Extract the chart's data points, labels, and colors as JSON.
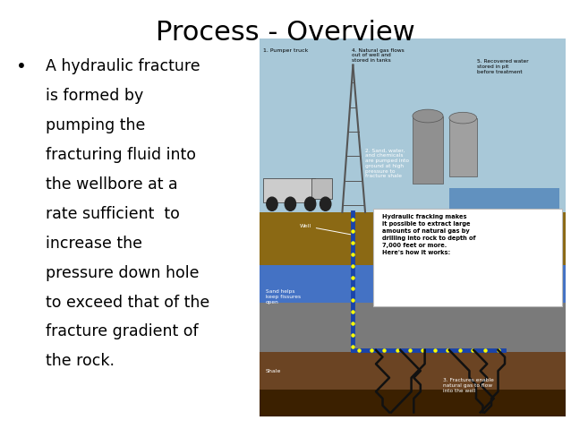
{
  "title": "Process - Overview",
  "title_fontsize": 22,
  "background_color": "#ffffff",
  "bullet_lines": [
    "A hydraulic fracture",
    "is formed by",
    "pumping the",
    "fracturing fluid into",
    "the wellbore at a",
    "rate sufficient  to",
    "increase the",
    "pressure down hole",
    "to exceed that of the",
    "fracture gradient of",
    "the rock."
  ],
  "bullet_fontsize": 12.5,
  "text_color": "#000000",
  "sky_color": "#a8c8d8",
  "ground_color": "#8B6914",
  "water_layer_color": "#4472C4",
  "gray_layer_color": "#7a7a7a",
  "dark_brown_color": "#6B4423",
  "very_dark_color": "#3B2000",
  "pipe_color": "#1a44aa",
  "dot_color": "#ffff00",
  "fracture_color": "#111111",
  "tank_color": "#888888",
  "truck_color": "#cccccc",
  "derrick_color": "#555555",
  "water_pool_color": "#5588bb",
  "infobox_text": "Hydraulic fracking makes\nit possible to extract large\namounts of natural gas by\ndrilling into rock to depth of\n7,000 feet or more.\nHere's how it works:",
  "label_pumper": "1. Pumper truck",
  "label_gas": "4. Natural gas flows\nout of well and\nstored in tanks",
  "label_water": "5. Recovered water\nstored in pit\nbefore treatment",
  "label_sand_water": "2. Sand, water,\nand chemicals\nare pumped into\nground at high\npressure to\nfracture shale",
  "label_well": "Well",
  "label_sand_fissures": "Sand helps\nkeep fissures\nopen",
  "label_shale": "Shale",
  "label_fractures": "3. Fractures enable\nnatural gas to flow\ninto the well"
}
